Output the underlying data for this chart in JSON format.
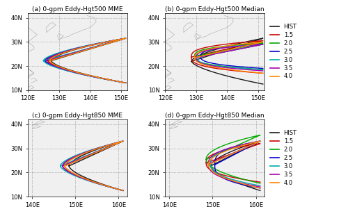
{
  "titles": [
    "(a) 0-gpm Eddy-Hgt500 MME",
    "(b) 0-gpm Eddy-Hgt500 Median",
    "(c) 0-gpm Eddy-Hgt850 MME",
    "(d) 0-gpm Eddy-Hgt850 Median"
  ],
  "legend_labels": [
    "HIST",
    "1.5",
    "2.0",
    "2.5",
    "3.0",
    "3.5",
    "4.0"
  ],
  "legend_colors": [
    "#1a1a1a",
    "#cc0000",
    "#00aa00",
    "#0000cc",
    "#00aaaa",
    "#aa00aa",
    "#ff8800"
  ],
  "panels_ab": {
    "xlim": [
      120,
      152
    ],
    "ylim": [
      10,
      42
    ],
    "xticks": [
      120,
      130,
      140,
      150
    ],
    "xticklabels": [
      "120E",
      "130E",
      "140E",
      "150E"
    ],
    "yticks": [
      10,
      20,
      30,
      40
    ],
    "yticklabels": [
      "10N",
      "20N",
      "30N",
      "40N"
    ]
  },
  "panels_cd": {
    "xlim": [
      139,
      162
    ],
    "ylim": [
      10,
      42
    ],
    "xticks": [
      140,
      150,
      160
    ],
    "xticklabels": [
      "140E",
      "150E",
      "160E"
    ],
    "yticks": [
      10,
      20,
      30,
      40
    ],
    "yticklabels": [
      "10N",
      "20N",
      "30N",
      "40N"
    ]
  },
  "params_a": [
    [
      "HIST",
      13.0,
      31.5,
      127.5,
      151.5,
      1.6
    ],
    [
      "1.5",
      13.0,
      31.5,
      126.5,
      151.5,
      1.6
    ],
    [
      "2.0",
      13.0,
      31.5,
      126.0,
      151.5,
      1.6
    ],
    [
      "2.5",
      13.0,
      31.5,
      125.5,
      151.5,
      1.6
    ],
    [
      "3.0",
      13.0,
      31.5,
      125.0,
      151.5,
      1.6
    ],
    [
      "3.5",
      13.0,
      31.5,
      126.0,
      151.5,
      1.6
    ],
    [
      "4.0",
      13.0,
      31.5,
      127.0,
      151.5,
      1.6
    ]
  ],
  "params_b": [
    [
      "HIST",
      12.5,
      31.5,
      128.5,
      151.5,
      1.6
    ],
    [
      "1.5",
      17.0,
      30.5,
      128.5,
      151.5,
      3.0
    ],
    [
      "2.0",
      18.5,
      29.5,
      129.5,
      151.5,
      3.0
    ],
    [
      "2.5",
      19.0,
      29.0,
      131.5,
      151.5,
      3.0
    ],
    [
      "3.0",
      18.5,
      29.0,
      130.5,
      151.5,
      3.5
    ],
    [
      "3.5",
      18.0,
      29.0,
      130.0,
      151.5,
      3.0
    ],
    [
      "4.0",
      17.0,
      30.0,
      129.5,
      151.5,
      2.5
    ]
  ],
  "params_c": [
    [
      "HIST",
      12.5,
      33.0,
      148.5,
      161.0,
      1.6
    ],
    [
      "1.5",
      12.5,
      33.0,
      147.5,
      161.0,
      1.6
    ],
    [
      "2.0",
      12.5,
      33.0,
      147.0,
      161.0,
      1.6
    ],
    [
      "2.5",
      12.5,
      33.0,
      147.0,
      161.0,
      1.6
    ],
    [
      "3.0",
      12.5,
      33.0,
      146.5,
      161.0,
      1.6
    ],
    [
      "3.5",
      12.5,
      33.0,
      147.0,
      161.0,
      1.6
    ],
    [
      "4.0",
      12.5,
      33.0,
      147.5,
      161.0,
      1.6
    ]
  ],
  "params_d": [
    [
      "HIST",
      12.5,
      33.0,
      149.5,
      161.0,
      1.6
    ],
    [
      "1.5",
      16.0,
      32.0,
      148.5,
      161.0,
      2.5
    ],
    [
      "2.0",
      15.5,
      35.5,
      148.5,
      161.0,
      2.0
    ],
    [
      "2.5",
      13.5,
      33.0,
      150.5,
      161.0,
      3.0
    ],
    [
      "3.0",
      14.5,
      33.0,
      149.5,
      161.0,
      2.5
    ],
    [
      "3.5",
      14.0,
      33.0,
      149.0,
      161.0,
      2.5
    ],
    [
      "4.0",
      13.5,
      33.0,
      149.0,
      161.0,
      2.0
    ]
  ]
}
